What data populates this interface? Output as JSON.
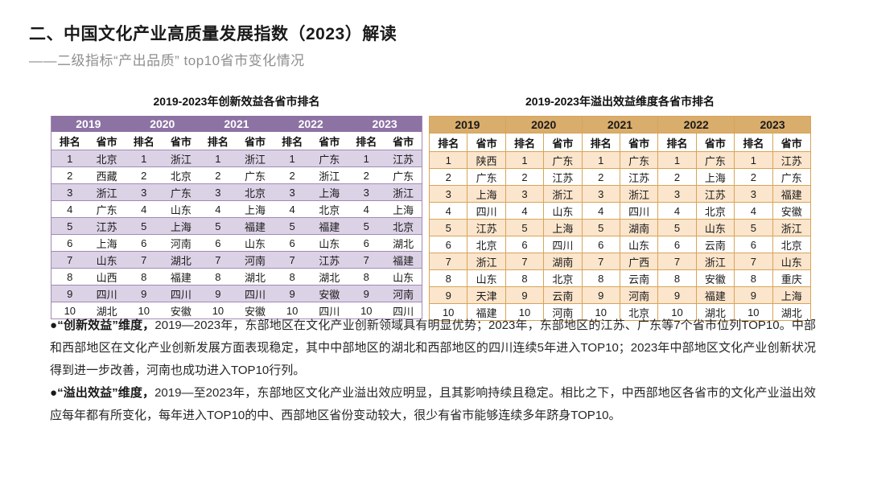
{
  "page": {
    "title": "二、中国文化产业高质量发展指数（2023）解读",
    "subtitle": "——二级指标“产出品质” top10省市变化情况"
  },
  "tables": [
    {
      "title": "2019-2023年创新效益各省市排名",
      "theme": "purple",
      "colors": {
        "header_bg": "#8D72A4",
        "header_text": "#FFFFFF",
        "stripe": "#DCD2E6",
        "border": "#A18AB5"
      },
      "years": [
        "2019",
        "2020",
        "2021",
        "2022",
        "2023"
      ],
      "col_headers": [
        "排名",
        "省市"
      ],
      "rows": [
        [
          1,
          "北京",
          1,
          "浙江",
          1,
          "浙江",
          1,
          "广东",
          1,
          "江苏"
        ],
        [
          2,
          "西藏",
          2,
          "北京",
          2,
          "广东",
          2,
          "浙江",
          2,
          "广东"
        ],
        [
          3,
          "浙江",
          3,
          "广东",
          3,
          "北京",
          3,
          "上海",
          3,
          "浙江"
        ],
        [
          4,
          "广东",
          4,
          "山东",
          4,
          "上海",
          4,
          "北京",
          4,
          "上海"
        ],
        [
          5,
          "江苏",
          5,
          "上海",
          5,
          "福建",
          5,
          "福建",
          5,
          "北京"
        ],
        [
          6,
          "上海",
          6,
          "河南",
          6,
          "山东",
          6,
          "山东",
          6,
          "湖北"
        ],
        [
          7,
          "山东",
          7,
          "湖北",
          7,
          "河南",
          7,
          "江苏",
          7,
          "福建"
        ],
        [
          8,
          "山西",
          8,
          "福建",
          8,
          "湖北",
          8,
          "湖北",
          8,
          "山东"
        ],
        [
          9,
          "四川",
          9,
          "四川",
          9,
          "四川",
          9,
          "安徽",
          9,
          "河南"
        ],
        [
          10,
          "湖北",
          10,
          "安徽",
          10,
          "安徽",
          10,
          "四川",
          10,
          "四川"
        ]
      ]
    },
    {
      "title": "2019-2023年溢出效益维度各省市排名",
      "theme": "tan",
      "colors": {
        "header_bg": "#D9AD6C",
        "header_text": "#1A1A1A",
        "stripe": "#FBE5CC",
        "border": "#D8A458"
      },
      "years": [
        "2019",
        "2020",
        "2021",
        "2022",
        "2023"
      ],
      "col_headers": [
        "排名",
        "省市"
      ],
      "rows": [
        [
          1,
          "陕西",
          1,
          "广东",
          1,
          "广东",
          1,
          "广东",
          1,
          "江苏"
        ],
        [
          2,
          "广东",
          2,
          "江苏",
          2,
          "江苏",
          2,
          "上海",
          2,
          "广东"
        ],
        [
          3,
          "上海",
          3,
          "浙江",
          3,
          "浙江",
          3,
          "江苏",
          3,
          "福建"
        ],
        [
          4,
          "四川",
          4,
          "山东",
          4,
          "四川",
          4,
          "北京",
          4,
          "安徽"
        ],
        [
          5,
          "江苏",
          5,
          "上海",
          5,
          "湖南",
          5,
          "山东",
          5,
          "浙江"
        ],
        [
          6,
          "北京",
          6,
          "四川",
          6,
          "山东",
          6,
          "云南",
          6,
          "北京"
        ],
        [
          7,
          "浙江",
          7,
          "湖南",
          7,
          "广西",
          7,
          "浙江",
          7,
          "山东"
        ],
        [
          8,
          "山东",
          8,
          "北京",
          8,
          "云南",
          8,
          "安徽",
          8,
          "重庆"
        ],
        [
          9,
          "天津",
          9,
          "云南",
          9,
          "河南",
          9,
          "福建",
          9,
          "上海"
        ],
        [
          10,
          "福建",
          10,
          "河南",
          10,
          "北京",
          10,
          "湖北",
          10,
          "湖北"
        ]
      ]
    }
  ],
  "bullets": [
    {
      "lead": "●“创新效益”维度，",
      "text": "2019—2023年，东部地区在文化产业创新领域具有明显优势；2023年，东部地区的江苏、广东等7个省市位列TOP10。中部和西部地区在文化产业创新发展方面表现稳定，其中中部地区的湖北和西部地区的四川连续5年进入TOP10；2023年中部地区文化产业创新状况得到进一步改善，河南也成功进入TOP10行列。"
    },
    {
      "lead": "●“溢出效益”维度，",
      "text": "2019—至2023年，东部地区文化产业溢出效应明显，且其影响持续且稳定。相比之下，中西部地区各省市的文化产业溢出效应每年都有所变化，每年进入TOP10的中、西部地区省份变动较大，很少有省市能够连续多年跻身TOP10。"
    }
  ]
}
